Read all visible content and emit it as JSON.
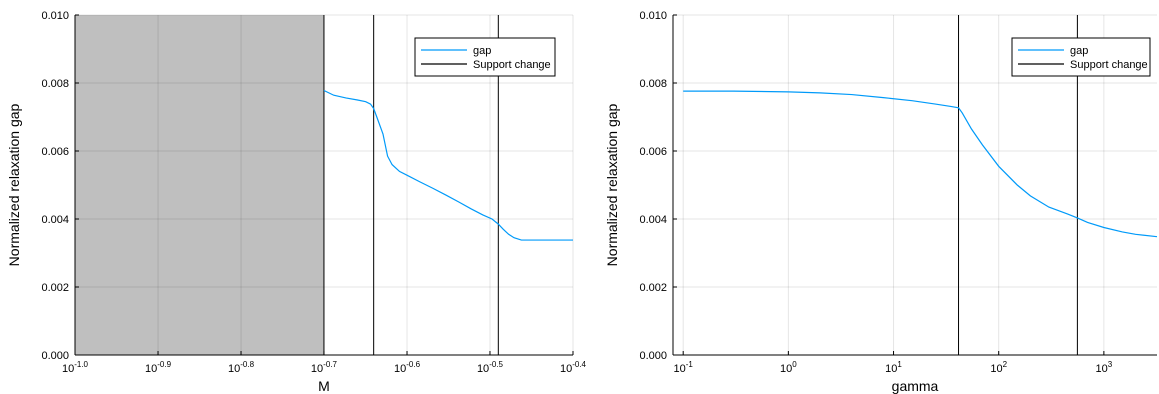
{
  "chart_data": [
    {
      "type": "line",
      "xscale": "log10",
      "xlim": [
        0.1,
        0.3981
      ],
      "ylim": [
        0,
        0.01
      ],
      "xlabel": "M",
      "ylabel": "Normalized relaxation gap",
      "xticks": [
        {
          "value": 0.1,
          "base": "10",
          "exp": "-1.0"
        },
        {
          "value": 0.1259,
          "base": "10",
          "exp": "-0.9"
        },
        {
          "value": 0.1585,
          "base": "10",
          "exp": "-0.8"
        },
        {
          "value": 0.1995,
          "base": "10",
          "exp": "-0.7"
        },
        {
          "value": 0.2512,
          "base": "10",
          "exp": "-0.6"
        },
        {
          "value": 0.3162,
          "base": "10",
          "exp": "-0.5"
        },
        {
          "value": 0.3981,
          "base": "10",
          "exp": "-0.4"
        }
      ],
      "yticks": [
        "0.000",
        "0.002",
        "0.004",
        "0.006",
        "0.008",
        "0.010"
      ],
      "shaded_region": {
        "x": [
          0.1,
          0.1995
        ],
        "color": "#bfbfbf"
      },
      "vlines": [
        0.1995,
        0.229,
        0.3236
      ],
      "grid": true,
      "legend": {
        "position": "top-right",
        "entries": [
          {
            "label": "gap",
            "color": "#009af9"
          },
          {
            "label": "Support change",
            "color": "#000000"
          }
        ]
      },
      "series": [
        {
          "name": "gap",
          "color": "#009af9",
          "x": [
            0.1995,
            0.205,
            0.212,
            0.219,
            0.224,
            0.227,
            0.229,
            0.231,
            0.235,
            0.238,
            0.241,
            0.246,
            0.252,
            0.26,
            0.27,
            0.28,
            0.29,
            0.3,
            0.31,
            0.318,
            0.3236,
            0.328,
            0.333,
            0.338,
            0.345,
            0.36,
            0.38,
            0.3981
          ],
          "y": [
            0.00778,
            0.00764,
            0.00756,
            0.0075,
            0.00745,
            0.00738,
            0.00725,
            0.007,
            0.0065,
            0.00585,
            0.0056,
            0.0054,
            0.00527,
            0.0051,
            0.0049,
            0.0047,
            0.0045,
            0.0043,
            0.00412,
            0.004,
            0.00385,
            0.0037,
            0.00355,
            0.00345,
            0.00338,
            0.00338,
            0.00338,
            0.00338
          ]
        }
      ]
    },
    {
      "type": "line",
      "xscale": "log10",
      "xlim": [
        0.08,
        3200
      ],
      "ylim": [
        0,
        0.01
      ],
      "xlabel": "gamma",
      "ylabel": "Normalized relaxation gap",
      "xticks": [
        {
          "value": 0.1,
          "base": "10",
          "exp": "-1"
        },
        {
          "value": 1,
          "base": "10",
          "exp": "0"
        },
        {
          "value": 10,
          "base": "10",
          "exp": "1"
        },
        {
          "value": 100,
          "base": "10",
          "exp": "2"
        },
        {
          "value": 1000,
          "base": "10",
          "exp": "3"
        }
      ],
      "yticks": [
        "0.000",
        "0.002",
        "0.004",
        "0.006",
        "0.008",
        "0.010"
      ],
      "vlines": [
        41.5,
        560
      ],
      "grid": true,
      "legend": {
        "position": "top-right",
        "entries": [
          {
            "label": "gap",
            "color": "#009af9"
          },
          {
            "label": "Support change",
            "color": "#000000"
          }
        ]
      },
      "series": [
        {
          "name": "gap",
          "color": "#009af9",
          "x": [
            0.1,
            0.3,
            1,
            2,
            4,
            8,
            15,
            25,
            35,
            41.5,
            45,
            55,
            70,
            100,
            150,
            200,
            300,
            450,
            560,
            700,
            1000,
            1500,
            2000,
            3200
          ],
          "y": [
            0.00776,
            0.00776,
            0.00774,
            0.00771,
            0.00766,
            0.00757,
            0.00748,
            0.00738,
            0.00731,
            0.00727,
            0.00712,
            0.00665,
            0.00618,
            0.00555,
            0.005,
            0.00468,
            0.00435,
            0.00415,
            0.00403,
            0.0039,
            0.00375,
            0.00362,
            0.00355,
            0.00348
          ]
        }
      ]
    }
  ]
}
